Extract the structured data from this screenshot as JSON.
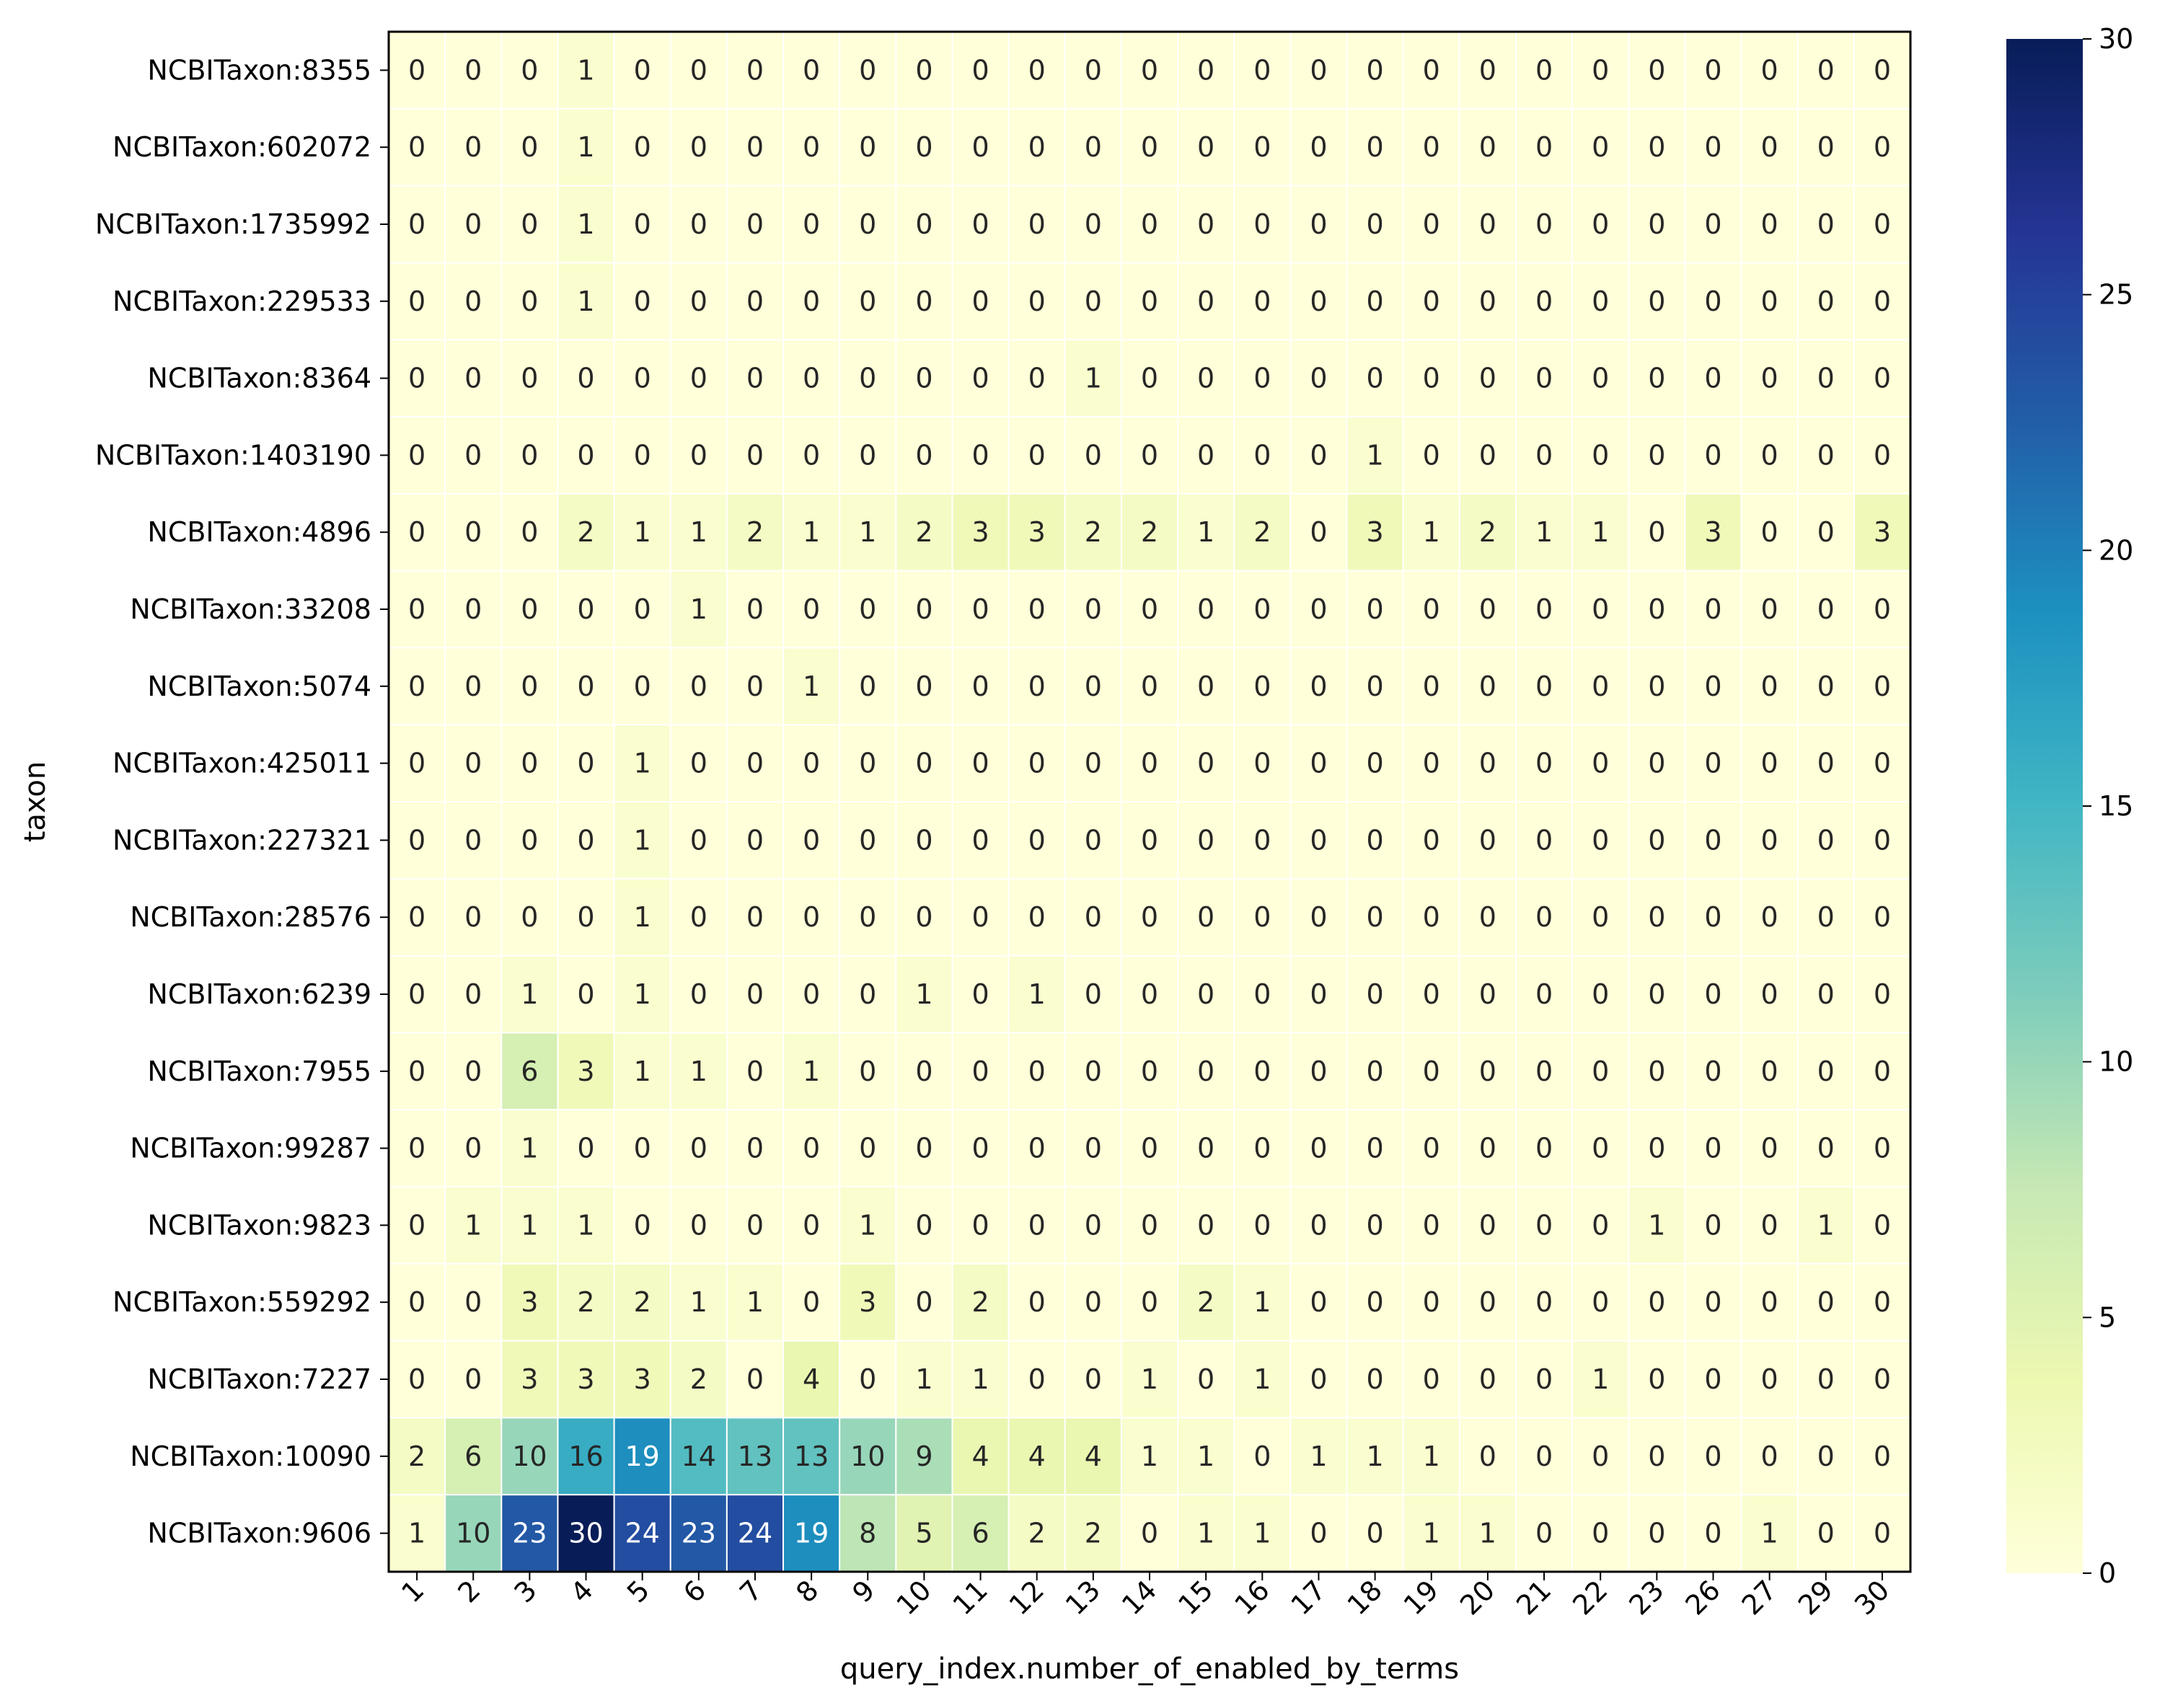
{
  "chart_data": {
    "type": "heatmap",
    "title": "",
    "xlabel": "query_index.number_of_enabled_by_terms",
    "ylabel": "taxon",
    "x_categories": [
      "1",
      "2",
      "3",
      "4",
      "5",
      "6",
      "7",
      "8",
      "9",
      "10",
      "11",
      "12",
      "13",
      "14",
      "15",
      "16",
      "17",
      "18",
      "19",
      "20",
      "21",
      "22",
      "23",
      "26",
      "27",
      "29",
      "30"
    ],
    "y_categories": [
      "NCBITaxon:8355",
      "NCBITaxon:602072",
      "NCBITaxon:1735992",
      "NCBITaxon:229533",
      "NCBITaxon:8364",
      "NCBITaxon:1403190",
      "NCBITaxon:4896",
      "NCBITaxon:33208",
      "NCBITaxon:5074",
      "NCBITaxon:425011",
      "NCBITaxon:227321",
      "NCBITaxon:28576",
      "NCBITaxon:6239",
      "NCBITaxon:7955",
      "NCBITaxon:99287",
      "NCBITaxon:9823",
      "NCBITaxon:559292",
      "NCBITaxon:7227",
      "NCBITaxon:10090",
      "NCBITaxon:9606"
    ],
    "values": [
      [
        0,
        0,
        0,
        1,
        0,
        0,
        0,
        0,
        0,
        0,
        0,
        0,
        0,
        0,
        0,
        0,
        0,
        0,
        0,
        0,
        0,
        0,
        0,
        0,
        0,
        0,
        0
      ],
      [
        0,
        0,
        0,
        1,
        0,
        0,
        0,
        0,
        0,
        0,
        0,
        0,
        0,
        0,
        0,
        0,
        0,
        0,
        0,
        0,
        0,
        0,
        0,
        0,
        0,
        0,
        0
      ],
      [
        0,
        0,
        0,
        1,
        0,
        0,
        0,
        0,
        0,
        0,
        0,
        0,
        0,
        0,
        0,
        0,
        0,
        0,
        0,
        0,
        0,
        0,
        0,
        0,
        0,
        0,
        0
      ],
      [
        0,
        0,
        0,
        1,
        0,
        0,
        0,
        0,
        0,
        0,
        0,
        0,
        0,
        0,
        0,
        0,
        0,
        0,
        0,
        0,
        0,
        0,
        0,
        0,
        0,
        0,
        0
      ],
      [
        0,
        0,
        0,
        0,
        0,
        0,
        0,
        0,
        0,
        0,
        0,
        0,
        1,
        0,
        0,
        0,
        0,
        0,
        0,
        0,
        0,
        0,
        0,
        0,
        0,
        0,
        0
      ],
      [
        0,
        0,
        0,
        0,
        0,
        0,
        0,
        0,
        0,
        0,
        0,
        0,
        0,
        0,
        0,
        0,
        0,
        1,
        0,
        0,
        0,
        0,
        0,
        0,
        0,
        0,
        0
      ],
      [
        0,
        0,
        0,
        2,
        1,
        1,
        2,
        1,
        1,
        2,
        3,
        3,
        2,
        2,
        1,
        2,
        0,
        3,
        1,
        2,
        1,
        1,
        0,
        3,
        0,
        0,
        3
      ],
      [
        0,
        0,
        0,
        0,
        0,
        1,
        0,
        0,
        0,
        0,
        0,
        0,
        0,
        0,
        0,
        0,
        0,
        0,
        0,
        0,
        0,
        0,
        0,
        0,
        0,
        0,
        0
      ],
      [
        0,
        0,
        0,
        0,
        0,
        0,
        0,
        1,
        0,
        0,
        0,
        0,
        0,
        0,
        0,
        0,
        0,
        0,
        0,
        0,
        0,
        0,
        0,
        0,
        0,
        0,
        0
      ],
      [
        0,
        0,
        0,
        0,
        1,
        0,
        0,
        0,
        0,
        0,
        0,
        0,
        0,
        0,
        0,
        0,
        0,
        0,
        0,
        0,
        0,
        0,
        0,
        0,
        0,
        0,
        0
      ],
      [
        0,
        0,
        0,
        0,
        1,
        0,
        0,
        0,
        0,
        0,
        0,
        0,
        0,
        0,
        0,
        0,
        0,
        0,
        0,
        0,
        0,
        0,
        0,
        0,
        0,
        0,
        0
      ],
      [
        0,
        0,
        0,
        0,
        1,
        0,
        0,
        0,
        0,
        0,
        0,
        0,
        0,
        0,
        0,
        0,
        0,
        0,
        0,
        0,
        0,
        0,
        0,
        0,
        0,
        0,
        0
      ],
      [
        0,
        0,
        1,
        0,
        1,
        0,
        0,
        0,
        0,
        1,
        0,
        1,
        0,
        0,
        0,
        0,
        0,
        0,
        0,
        0,
        0,
        0,
        0,
        0,
        0,
        0,
        0
      ],
      [
        0,
        0,
        6,
        3,
        1,
        1,
        0,
        1,
        0,
        0,
        0,
        0,
        0,
        0,
        0,
        0,
        0,
        0,
        0,
        0,
        0,
        0,
        0,
        0,
        0,
        0,
        0
      ],
      [
        0,
        0,
        1,
        0,
        0,
        0,
        0,
        0,
        0,
        0,
        0,
        0,
        0,
        0,
        0,
        0,
        0,
        0,
        0,
        0,
        0,
        0,
        0,
        0,
        0,
        0,
        0
      ],
      [
        0,
        1,
        1,
        1,
        0,
        0,
        0,
        0,
        1,
        0,
        0,
        0,
        0,
        0,
        0,
        0,
        0,
        0,
        0,
        0,
        0,
        0,
        1,
        0,
        0,
        1,
        0
      ],
      [
        0,
        0,
        3,
        2,
        2,
        1,
        1,
        0,
        3,
        0,
        2,
        0,
        0,
        0,
        2,
        1,
        0,
        0,
        0,
        0,
        0,
        0,
        0,
        0,
        0,
        0,
        0
      ],
      [
        0,
        0,
        3,
        3,
        3,
        2,
        0,
        4,
        0,
        1,
        1,
        0,
        0,
        1,
        0,
        1,
        0,
        0,
        0,
        0,
        0,
        1,
        0,
        0,
        0,
        0,
        0
      ],
      [
        2,
        6,
        10,
        16,
        19,
        14,
        13,
        13,
        10,
        9,
        4,
        4,
        4,
        1,
        1,
        0,
        1,
        1,
        1,
        0,
        0,
        0,
        0,
        0,
        0,
        0,
        0
      ],
      [
        1,
        10,
        23,
        30,
        24,
        23,
        24,
        19,
        8,
        5,
        6,
        2,
        2,
        0,
        1,
        1,
        0,
        0,
        1,
        1,
        0,
        0,
        0,
        0,
        1,
        0,
        0
      ]
    ],
    "vmin": 0,
    "vmax": 30,
    "colormap": "YlGnBu",
    "colorbar_ticks": [
      0,
      5,
      10,
      15,
      20,
      25,
      30
    ],
    "annotated": true,
    "grid": false,
    "cell_edge_color": "#ffffff"
  }
}
